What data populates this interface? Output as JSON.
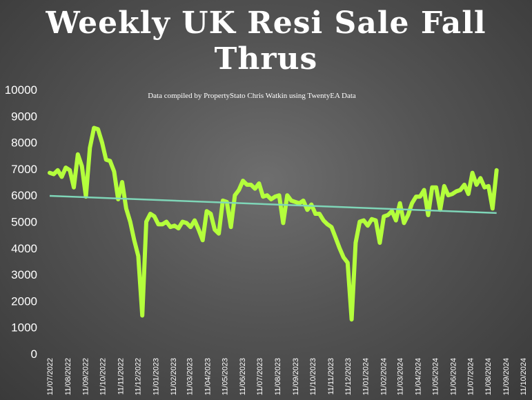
{
  "chart_data": {
    "type": "line",
    "title": "Weekly UK Resi Sale Fall Thrus",
    "annotation": "Data compiled by PropertyStato Chris Watkin using TwentyEA Data",
    "xlabel": "",
    "ylabel": "",
    "ylim": [
      0,
      10000
    ],
    "yticks": [
      "0",
      "1000",
      "2000",
      "3000",
      "4000",
      "5000",
      "6000",
      "7000",
      "8000",
      "9000",
      "10000"
    ],
    "xticks": [
      "11/07/2022",
      "11/08/2022",
      "11/09/2022",
      "11/10/2022",
      "11/11/2022",
      "11/12/2022",
      "11/01/2023",
      "11/02/2023",
      "11/03/2023",
      "11/04/2023",
      "11/05/2023",
      "11/06/2023",
      "11/07/2023",
      "11/08/2023",
      "11/09/2023",
      "11/10/2023",
      "11/11/2023",
      "11/12/2023",
      "11/01/2024",
      "11/02/2024",
      "11/03/2024",
      "11/04/2024",
      "11/05/2024",
      "11/06/2024",
      "11/07/2024",
      "11/08/2024",
      "11/09/2024",
      "11/10/2024"
    ],
    "grid": false,
    "legend": "none",
    "colors": {
      "series": "#b4ff3c",
      "trend": "#7fd6b8",
      "text": "#ffffff"
    },
    "series": [
      {
        "values": [
          [
            "2022-07-11",
            6850
          ],
          [
            "2022-07-18",
            6800
          ],
          [
            "2022-07-25",
            6950
          ],
          [
            "2022-08-01",
            6700
          ],
          [
            "2022-08-08",
            7050
          ],
          [
            "2022-08-15",
            6950
          ],
          [
            "2022-08-22",
            6300
          ],
          [
            "2022-08-29",
            7550
          ],
          [
            "2022-09-05",
            7100
          ],
          [
            "2022-09-12",
            5950
          ],
          [
            "2022-09-19",
            7800
          ],
          [
            "2022-09-26",
            8550
          ],
          [
            "2022-10-03",
            8500
          ],
          [
            "2022-10-10",
            8000
          ],
          [
            "2022-10-17",
            7350
          ],
          [
            "2022-10-24",
            7300
          ],
          [
            "2022-10-31",
            6900
          ],
          [
            "2022-11-07",
            5850
          ],
          [
            "2022-11-14",
            6500
          ],
          [
            "2022-11-21",
            5500
          ],
          [
            "2022-11-28",
            5000
          ],
          [
            "2022-12-05",
            4300
          ],
          [
            "2022-12-12",
            3700
          ],
          [
            "2022-12-19",
            1450
          ],
          [
            "2022-12-26",
            5000
          ],
          [
            "2023-01-02",
            5300
          ],
          [
            "2023-01-09",
            5200
          ],
          [
            "2023-01-16",
            4900
          ],
          [
            "2023-01-23",
            4900
          ],
          [
            "2023-01-30",
            5000
          ],
          [
            "2023-02-06",
            4800
          ],
          [
            "2023-02-13",
            4850
          ],
          [
            "2023-02-20",
            4750
          ],
          [
            "2023-02-27",
            5000
          ],
          [
            "2023-03-06",
            4950
          ],
          [
            "2023-03-13",
            4800
          ],
          [
            "2023-03-20",
            5050
          ],
          [
            "2023-03-27",
            4700
          ],
          [
            "2023-04-03",
            4300
          ],
          [
            "2023-04-10",
            5400
          ],
          [
            "2023-04-17",
            5300
          ],
          [
            "2023-04-24",
            4700
          ],
          [
            "2023-05-01",
            4550
          ],
          [
            "2023-05-08",
            5800
          ],
          [
            "2023-05-15",
            5750
          ],
          [
            "2023-05-22",
            4800
          ],
          [
            "2023-05-29",
            6000
          ],
          [
            "2023-06-05",
            6200
          ],
          [
            "2023-06-12",
            6550
          ],
          [
            "2023-06-19",
            6400
          ],
          [
            "2023-06-26",
            6400
          ],
          [
            "2023-07-03",
            6250
          ],
          [
            "2023-07-10",
            6450
          ],
          [
            "2023-07-17",
            5950
          ],
          [
            "2023-07-24",
            6000
          ],
          [
            "2023-07-31",
            5850
          ],
          [
            "2023-08-07",
            5950
          ],
          [
            "2023-08-14",
            6000
          ],
          [
            "2023-08-21",
            4950
          ],
          [
            "2023-08-28",
            6000
          ],
          [
            "2023-09-04",
            5800
          ],
          [
            "2023-09-11",
            5750
          ],
          [
            "2023-09-18",
            5700
          ],
          [
            "2023-09-25",
            5800
          ],
          [
            "2023-10-02",
            5450
          ],
          [
            "2023-10-09",
            5650
          ],
          [
            "2023-10-16",
            5300
          ],
          [
            "2023-10-23",
            5300
          ],
          [
            "2023-10-30",
            5050
          ],
          [
            "2023-11-06",
            4900
          ],
          [
            "2023-11-13",
            4800
          ],
          [
            "2023-11-20",
            4400
          ],
          [
            "2023-11-27",
            4000
          ],
          [
            "2023-12-04",
            3650
          ],
          [
            "2023-12-11",
            3450
          ],
          [
            "2023-12-18",
            1300
          ],
          [
            "2023-12-25",
            4200
          ],
          [
            "2024-01-01",
            5000
          ],
          [
            "2024-01-08",
            5050
          ],
          [
            "2024-01-15",
            4850
          ],
          [
            "2024-01-22",
            5100
          ],
          [
            "2024-01-29",
            5050
          ],
          [
            "2024-02-05",
            4200
          ],
          [
            "2024-02-12",
            5200
          ],
          [
            "2024-02-19",
            5250
          ],
          [
            "2024-02-26",
            5400
          ],
          [
            "2024-03-04",
            5050
          ],
          [
            "2024-03-11",
            5700
          ],
          [
            "2024-03-18",
            4950
          ],
          [
            "2024-03-25",
            5250
          ],
          [
            "2024-04-01",
            5700
          ],
          [
            "2024-04-08",
            5950
          ],
          [
            "2024-04-15",
            5950
          ],
          [
            "2024-04-22",
            6200
          ],
          [
            "2024-04-29",
            5250
          ],
          [
            "2024-05-06",
            6300
          ],
          [
            "2024-05-13",
            6300
          ],
          [
            "2024-05-20",
            5450
          ],
          [
            "2024-05-27",
            6350
          ],
          [
            "2024-06-03",
            6000
          ],
          [
            "2024-06-10",
            6050
          ],
          [
            "2024-06-17",
            6150
          ],
          [
            "2024-06-24",
            6200
          ],
          [
            "2024-07-01",
            6400
          ],
          [
            "2024-07-08",
            6050
          ],
          [
            "2024-07-15",
            6850
          ],
          [
            "2024-07-22",
            6400
          ],
          [
            "2024-07-29",
            6650
          ],
          [
            "2024-08-05",
            6300
          ],
          [
            "2024-08-12",
            6350
          ],
          [
            "2024-08-19",
            5500
          ],
          [
            "2024-08-26",
            6950
          ]
        ]
      },
      {
        "trendline": true,
        "values": [
          [
            "2022-07-11",
            5980
          ],
          [
            "2024-08-26",
            5330
          ]
        ]
      }
    ]
  }
}
